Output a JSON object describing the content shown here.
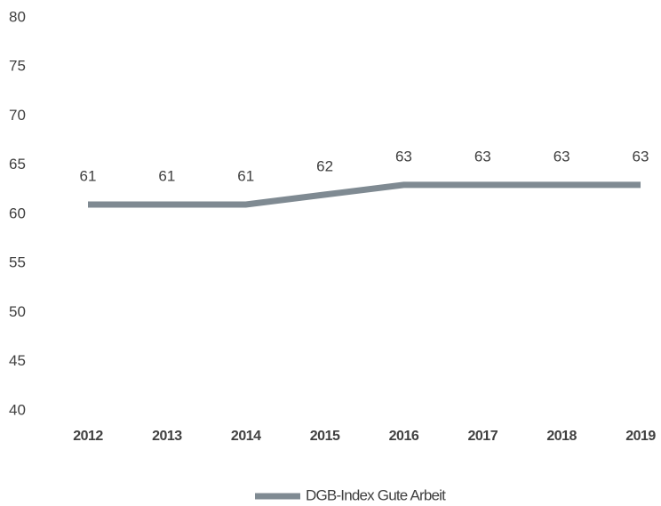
{
  "chart_data": {
    "type": "line",
    "categories": [
      "2012",
      "2013",
      "2014",
      "2015",
      "2016",
      "2017",
      "2018",
      "2019"
    ],
    "series": [
      {
        "name": "DGB-Index Gute Arbeit",
        "color": "#7f8a92",
        "values": [
          61,
          61,
          61,
          62,
          63,
          63,
          63,
          63
        ]
      }
    ],
    "ylim": [
      40,
      80
    ],
    "yticks": [
      40,
      45,
      50,
      55,
      60,
      65,
      70,
      75,
      80
    ],
    "grid": false,
    "legend": "bottom",
    "data_labels": true
  }
}
